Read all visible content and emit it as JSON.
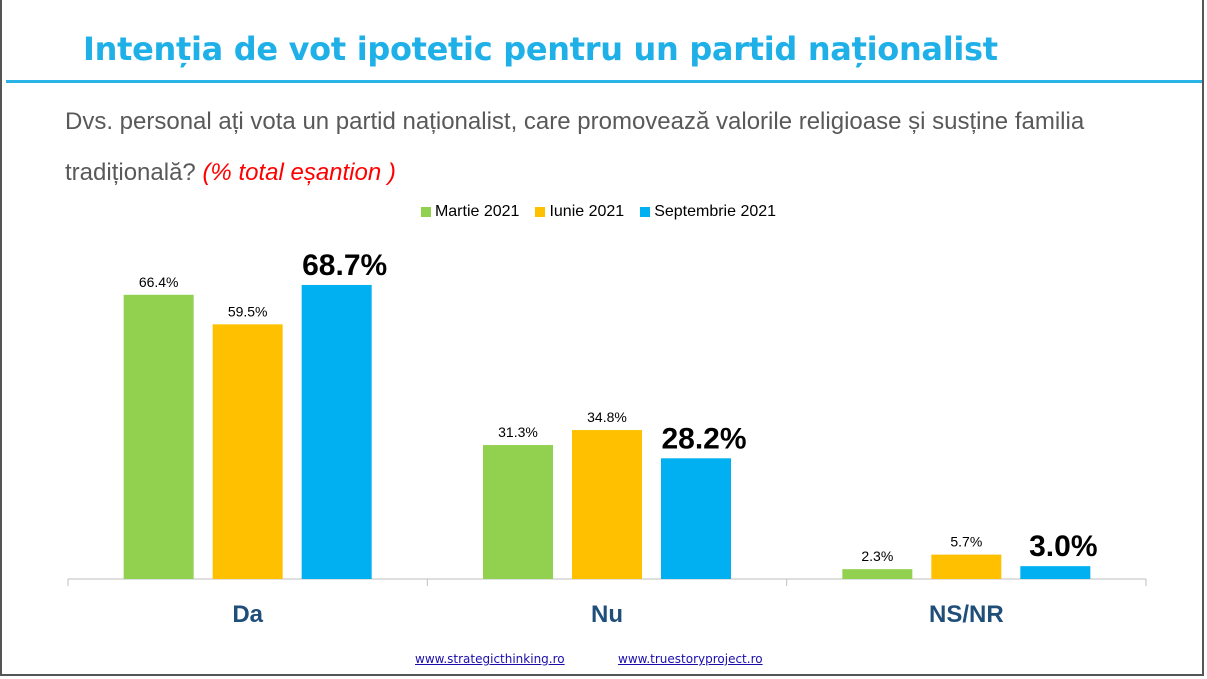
{
  "title": "Intenția de vot ipotetic pentru un partid naționalist",
  "question": {
    "text": "Dvs. personal ați vota un partid naționalist, care promovează valorile religioase și susține familia tradițională?",
    "note": "(% total eșantion )"
  },
  "colors": {
    "Martie 2021": "#92d050",
    "Iunie 2021": "#ffc000",
    "Septembrie 2021": "#00b0f0"
  },
  "chart_data": {
    "type": "bar",
    "categories": [
      "Da",
      "Nu",
      "NS/NR"
    ],
    "series": [
      {
        "name": "Martie 2021",
        "values": [
          66.4,
          31.3,
          2.3
        ],
        "labels": [
          "66.4%",
          "31.3%",
          "2.3%"
        ]
      },
      {
        "name": "Iunie 2021",
        "values": [
          59.5,
          34.8,
          5.7
        ],
        "labels": [
          "59.5%",
          "34.8%",
          "5.7%"
        ]
      },
      {
        "name": "Septembrie 2021",
        "values": [
          68.7,
          28.2,
          3.0
        ],
        "labels": [
          "68.7%",
          "28.2%",
          "3.0%"
        ]
      }
    ],
    "ylim": [
      0,
      100
    ],
    "legend": "top-center",
    "grid": false,
    "highlighted_series": "Septembrie 2021"
  },
  "footer": {
    "link1": "www.strategicthinking.ro",
    "link2": "www.truestoryproject.ro"
  }
}
